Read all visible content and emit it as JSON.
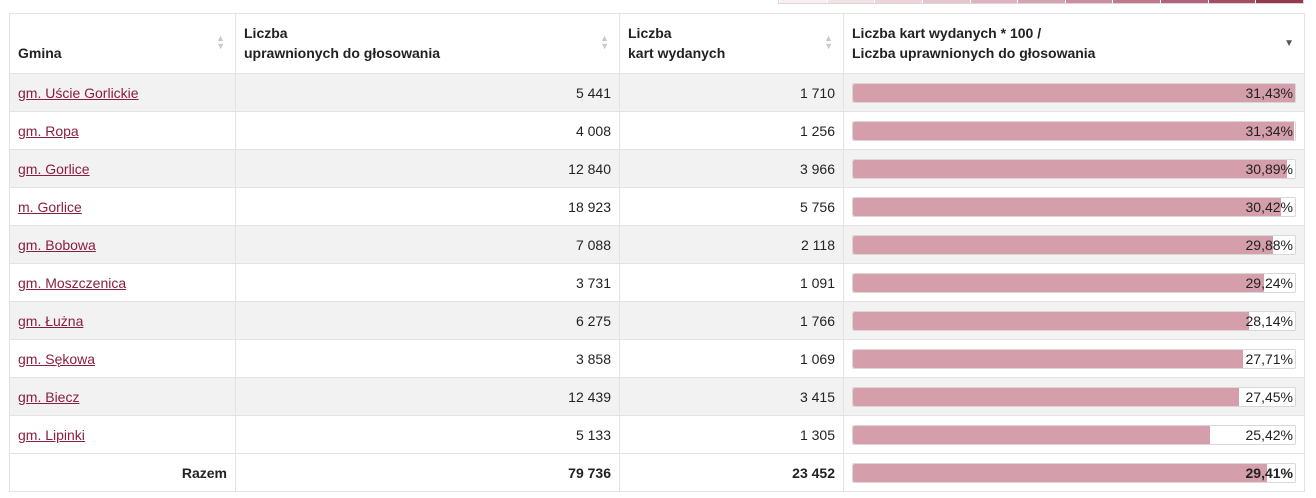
{
  "legend_colors": [
    "#f7eff1",
    "#f1e2e6",
    "#ebd5db",
    "#e4c6ce",
    "#dcb5bf",
    "#d3a3b0",
    "#c98f9e",
    "#bd7a8b",
    "#b06477",
    "#a24e63",
    "#933a50"
  ],
  "headers": {
    "gmina": "Gmina",
    "uprawnieni_line1": "Liczba",
    "uprawnieni_line2": "uprawnionych do głosowania",
    "karty_line1": "Liczba",
    "karty_line2": "kart wydanych",
    "frekwencja_line1": "Liczba kart wydanych * 100 /",
    "frekwencja_line2": "Liczba uprawnionych do głosowania"
  },
  "sort_icons": {
    "inactive": "sort-both-icon",
    "active": "sort-desc-icon"
  },
  "bar_color": "#d49eab",
  "rows": [
    {
      "name": "gm. Uście Gorlickie",
      "uprawnieni": "5 441",
      "karty": "1 710",
      "frekwencja": "31,43%",
      "value": 31.43
    },
    {
      "name": "gm. Ropa",
      "uprawnieni": "4 008",
      "karty": "1 256",
      "frekwencja": "31,34%",
      "value": 31.34
    },
    {
      "name": "gm. Gorlice",
      "uprawnieni": "12 840",
      "karty": "3 966",
      "frekwencja": "30,89%",
      "value": 30.89
    },
    {
      "name": "m. Gorlice",
      "uprawnieni": "18 923",
      "karty": "5 756",
      "frekwencja": "30,42%",
      "value": 30.42
    },
    {
      "name": "gm. Bobowa",
      "uprawnieni": "7 088",
      "karty": "2 118",
      "frekwencja": "29,88%",
      "value": 29.88
    },
    {
      "name": "gm. Moszczenica",
      "uprawnieni": "3 731",
      "karty": "1 091",
      "frekwencja": "29,24%",
      "value": 29.24
    },
    {
      "name": "gm. Łużna",
      "uprawnieni": "6 275",
      "karty": "1 766",
      "frekwencja": "28,14%",
      "value": 28.14
    },
    {
      "name": "gm. Sękowa",
      "uprawnieni": "3 858",
      "karty": "1 069",
      "frekwencja": "27,71%",
      "value": 27.71
    },
    {
      "name": "gm. Biecz",
      "uprawnieni": "12 439",
      "karty": "3 415",
      "frekwencja": "27,45%",
      "value": 27.45
    },
    {
      "name": "gm. Lipinki",
      "uprawnieni": "5 133",
      "karty": "1 305",
      "frekwencja": "25,42%",
      "value": 25.42
    }
  ],
  "total": {
    "label": "Razem",
    "uprawnieni": "79 736",
    "karty": "23 452",
    "frekwencja": "29,41%",
    "value": 29.41
  }
}
